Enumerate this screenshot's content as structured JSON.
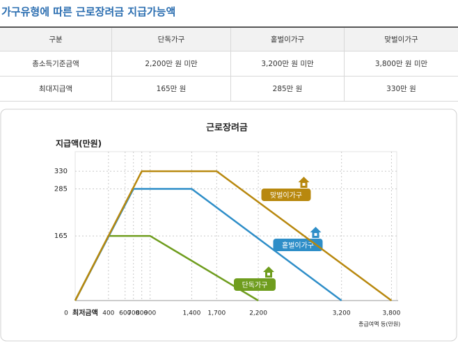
{
  "header": {
    "title": "가구유형에 따른 근로장려금 지급가능액"
  },
  "table": {
    "columns": [
      "구분",
      "단독가구",
      "홑벌이가구",
      "맞벌이가구"
    ],
    "rows": [
      [
        "총소득기준금액",
        "2,200만 원 미만",
        "3,200만 원 미만",
        "3,800만 원 미만"
      ],
      [
        "최대지급액",
        "165만 원",
        "285만 원",
        "330만 원"
      ]
    ]
  },
  "chart_data": {
    "type": "line",
    "title": "근로장려금",
    "y_label": "지급액(만원)",
    "x_label": "총급여액 등(만원)",
    "x_annotation": "최저금액",
    "series": [
      {
        "name": "단독가구",
        "color": "#6f9d1e",
        "x": [
          0,
          400,
          900,
          2200
        ],
        "values": [
          0,
          165,
          165,
          0
        ]
      },
      {
        "name": "홑벌이가구",
        "color": "#2e8ec8",
        "x": [
          0,
          700,
          1400,
          3200
        ],
        "values": [
          0,
          285,
          285,
          0
        ]
      },
      {
        "name": "맞벌이가구",
        "color": "#b8880e",
        "x": [
          0,
          800,
          1700,
          3800
        ],
        "values": [
          0,
          330,
          330,
          0
        ]
      }
    ],
    "xlim": [
      0,
      3880
    ],
    "ylim": [
      0,
      380
    ],
    "xticks": [
      0,
      400,
      600,
      700,
      800,
      900,
      {
        "value": 1400,
        "label": "1,400"
      },
      {
        "value": 1700,
        "label": "1,700"
      },
      {
        "value": 2200,
        "label": "2,200"
      },
      {
        "value": 3200,
        "label": "3,200"
      },
      {
        "value": 3800,
        "label": "3,800"
      }
    ],
    "yticks": [
      165,
      285,
      330
    ],
    "grid": true
  }
}
